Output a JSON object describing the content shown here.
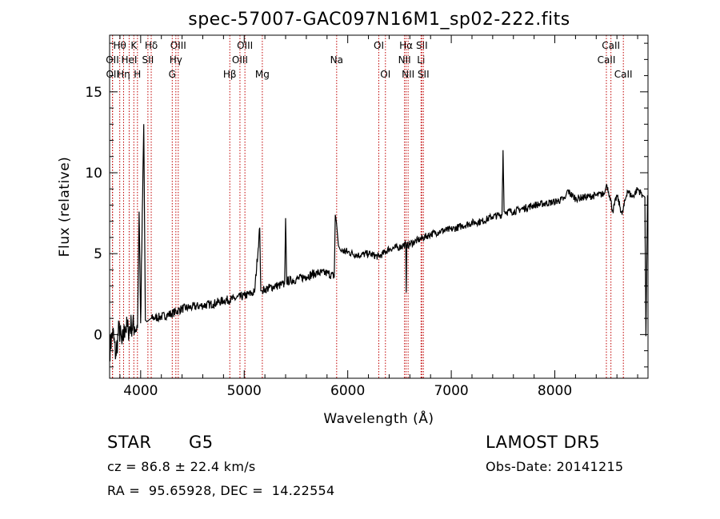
{
  "chart_data": {
    "type": "line",
    "title": "spec-57007-GAC097N16M1_sp02-222.fits",
    "xlabel": "Wavelength (Å)",
    "ylabel": "Flux (relative)",
    "xlim": [
      3700,
      8900
    ],
    "ylim": [
      -2.7,
      18.5
    ],
    "xticks": [
      4000,
      5000,
      6000,
      7000,
      8000
    ],
    "yticks": [
      0,
      5,
      10,
      15
    ],
    "line_color": "#000000",
    "marker_color": "#c00000",
    "series": [
      {
        "x": [
          3700,
          3730,
          3760,
          3790,
          3820,
          3850,
          3880,
          3910,
          3940,
          3970,
          3985,
          4000,
          4030,
          4045,
          4060,
          4080,
          4100,
          4200,
          4300,
          4400,
          4500,
          4600,
          4700,
          4800,
          4900,
          5000,
          5100,
          5150,
          5160,
          5175,
          5200,
          5300,
          5390,
          5400,
          5410,
          5500,
          5600,
          5700,
          5800,
          5870,
          5880,
          5890,
          5910,
          5930,
          6000,
          6100,
          6200,
          6300,
          6400,
          6500,
          6560,
          6565,
          6570,
          6600,
          6700,
          6800,
          6900,
          7000,
          7100,
          7200,
          7300,
          7400,
          7490,
          7500,
          7510,
          7600,
          7700,
          7800,
          7900,
          8000,
          8100,
          8120,
          8200,
          8300,
          8400,
          8480,
          8500,
          8530,
          8560,
          8600,
          8650,
          8700,
          8750,
          8800,
          8850,
          8870,
          8880,
          8895
        ],
        "y": [
          -1.0,
          0.2,
          -1.3,
          0.4,
          -0.6,
          0.5,
          0.3,
          0.6,
          0.5,
          0.4,
          7.6,
          0.7,
          13.0,
          0.9,
          0.8,
          0.9,
          1.0,
          1.1,
          1.3,
          1.6,
          1.7,
          1.8,
          1.9,
          2.1,
          2.2,
          2.4,
          2.6,
          6.6,
          2.7,
          2.7,
          2.8,
          3.0,
          3.1,
          7.2,
          3.3,
          3.4,
          3.6,
          3.8,
          3.8,
          3.6,
          7.4,
          7.0,
          5.5,
          5.2,
          5.1,
          4.9,
          5.0,
          4.8,
          5.3,
          5.4,
          5.6,
          2.6,
          5.5,
          5.6,
          5.9,
          6.2,
          6.4,
          6.5,
          6.7,
          6.9,
          7.0,
          7.3,
          7.4,
          11.4,
          7.6,
          7.6,
          7.8,
          8.0,
          8.1,
          8.2,
          8.4,
          8.9,
          8.4,
          8.5,
          8.6,
          8.7,
          9.3,
          8.6,
          7.6,
          8.6,
          7.4,
          8.9,
          8.5,
          9.0,
          8.6,
          8.5,
          -0.1,
          8.6
        ]
      }
    ],
    "line_markers": [
      {
        "label": "Hθ",
        "wavelength": 3798,
        "row": 0
      },
      {
        "label": "OII",
        "wavelength": 3727,
        "row": 1
      },
      {
        "label": "OII",
        "wavelength": 3729,
        "row": 2
      },
      {
        "label": "K",
        "wavelength": 3934,
        "row": 0
      },
      {
        "label": "HeI",
        "wavelength": 3889,
        "row": 1
      },
      {
        "label": "Hη",
        "wavelength": 3835,
        "row": 2
      },
      {
        "label": "Hδ",
        "wavelength": 4102,
        "row": 0
      },
      {
        "label": "SII",
        "wavelength": 4070,
        "row": 1
      },
      {
        "label": "H",
        "wavelength": 3969,
        "row": 2
      },
      {
        "label": "OIII",
        "wavelength": 4363,
        "row": 0
      },
      {
        "label": "Hγ",
        "wavelength": 4340,
        "row": 1
      },
      {
        "label": "G",
        "wavelength": 4305,
        "row": 2
      },
      {
        "label": "OIII",
        "wavelength": 5007,
        "row": 0
      },
      {
        "label": "OIII",
        "wavelength": 4959,
        "row": 1
      },
      {
        "label": "Hβ",
        "wavelength": 4861,
        "row": 2
      },
      {
        "label": "Mg",
        "wavelength": 5175,
        "row": 2
      },
      {
        "label": "Na",
        "wavelength": 5893,
        "row": 1
      },
      {
        "label": "OI",
        "wavelength": 6300,
        "row": 0
      },
      {
        "label": "OI",
        "wavelength": 6364,
        "row": 2
      },
      {
        "label": "Hα",
        "wavelength": 6563,
        "row": 0
      },
      {
        "label": "NII",
        "wavelength": 6548,
        "row": 1
      },
      {
        "label": "NII",
        "wavelength": 6583,
        "row": 2
      },
      {
        "label": "SII",
        "wavelength": 6716,
        "row": 0
      },
      {
        "label": "Li",
        "wavelength": 6708,
        "row": 1
      },
      {
        "label": "SII",
        "wavelength": 6731,
        "row": 2
      },
      {
        "label": "CaII",
        "wavelength": 8542,
        "row": 0
      },
      {
        "label": "CaII",
        "wavelength": 8498,
        "row": 1
      },
      {
        "label": "CaII",
        "wavelength": 8662,
        "row": 2
      }
    ]
  },
  "info": {
    "object_class": "STAR",
    "subclass": "G5",
    "cz": "cz = 86.8 ± 22.4 km/s",
    "coords": "RA =  95.65928, DEC =  14.22554",
    "survey": "LAMOST DR5",
    "obs_date": "Obs-Date: 20141215"
  }
}
